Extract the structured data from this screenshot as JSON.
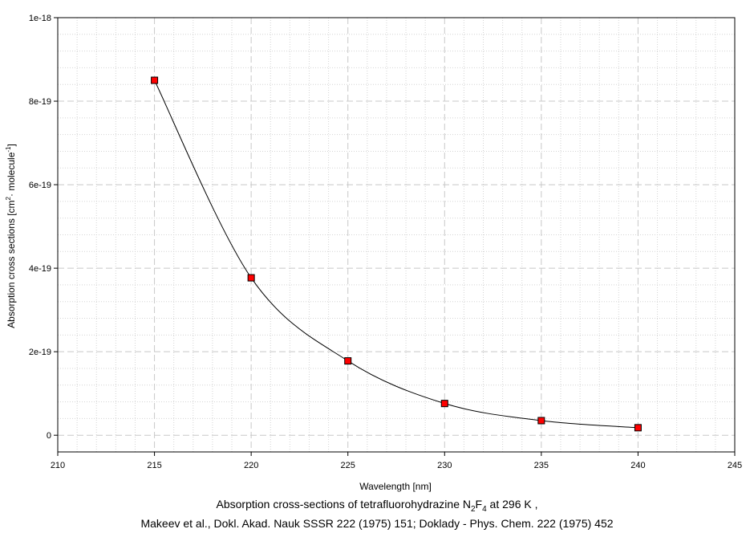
{
  "chart_data": {
    "type": "line",
    "x": [
      215,
      220,
      225,
      230,
      235,
      240
    ],
    "series": [
      {
        "values": [
          8.5e-19,
          3.77e-19,
          1.78e-19,
          7.6e-20,
          3.5e-20,
          1.8e-20
        ]
      }
    ],
    "xlim": [
      210,
      245
    ],
    "ylim": [
      -4e-20,
      1e-18
    ],
    "x_ticks": [
      210,
      215,
      220,
      225,
      230,
      235,
      240,
      245
    ],
    "x_tick_labels": [
      "210",
      "215",
      "220",
      "225",
      "230",
      "235",
      "240",
      "245"
    ],
    "y_ticks": [
      0,
      2e-19,
      4e-19,
      6e-19,
      8e-19,
      1e-18
    ],
    "y_tick_labels": [
      "0",
      "2e-19",
      "4e-19",
      "6e-19",
      "8e-19",
      "1e-18"
    ],
    "xlabel": "Wavelength [nm]",
    "ylabel": {
      "prefix": "Absorption cross sections [cm",
      "sup1": "2",
      "middle": " molecule",
      "sup2": "-1",
      "suffix": "]"
    },
    "grid": true,
    "minor_grid": true,
    "legend": "none",
    "marker": "square",
    "colors": {
      "line": "#000000",
      "marker_fill": "#ff0000",
      "marker_edge": "#000000",
      "major_grid": "#c8c8c8",
      "minor_grid": "#d4d4d4"
    }
  },
  "caption": {
    "line1_prefix": "Absorption cross-sections of tetrafluorohydrazine N",
    "line1_sub1": "2",
    "line1_mid": "F",
    "line1_sub2": "4",
    "line1_suffix": " at 296 K ,",
    "line2": "Makeev et al., Dokl. Akad. Nauk SSSR 222 (1975) 151; Doklady - Phys. Chem. 222 (1975) 452"
  }
}
